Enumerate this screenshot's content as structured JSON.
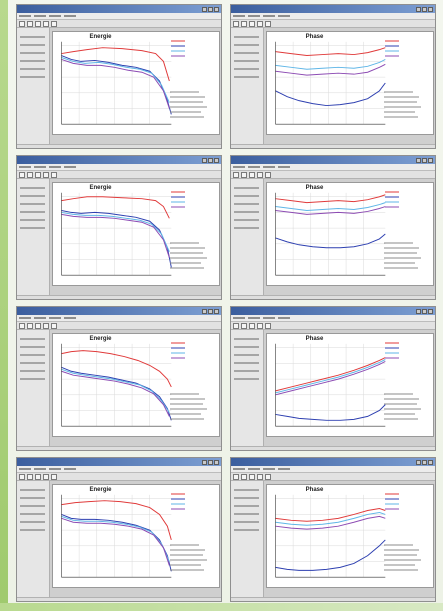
{
  "panels": [
    {
      "title": "Energie"
    },
    {
      "title": "Phase"
    },
    {
      "title": "Energie"
    },
    {
      "title": "Phase"
    },
    {
      "title": "Energie"
    },
    {
      "title": "Phase"
    },
    {
      "title": "Energie"
    },
    {
      "title": "Phase"
    }
  ],
  "colors": {
    "red": "#e03a3a",
    "blue": "#2d3fb0",
    "lightblue": "#5fb6e7",
    "purple": "#8c4bb3"
  }
}
